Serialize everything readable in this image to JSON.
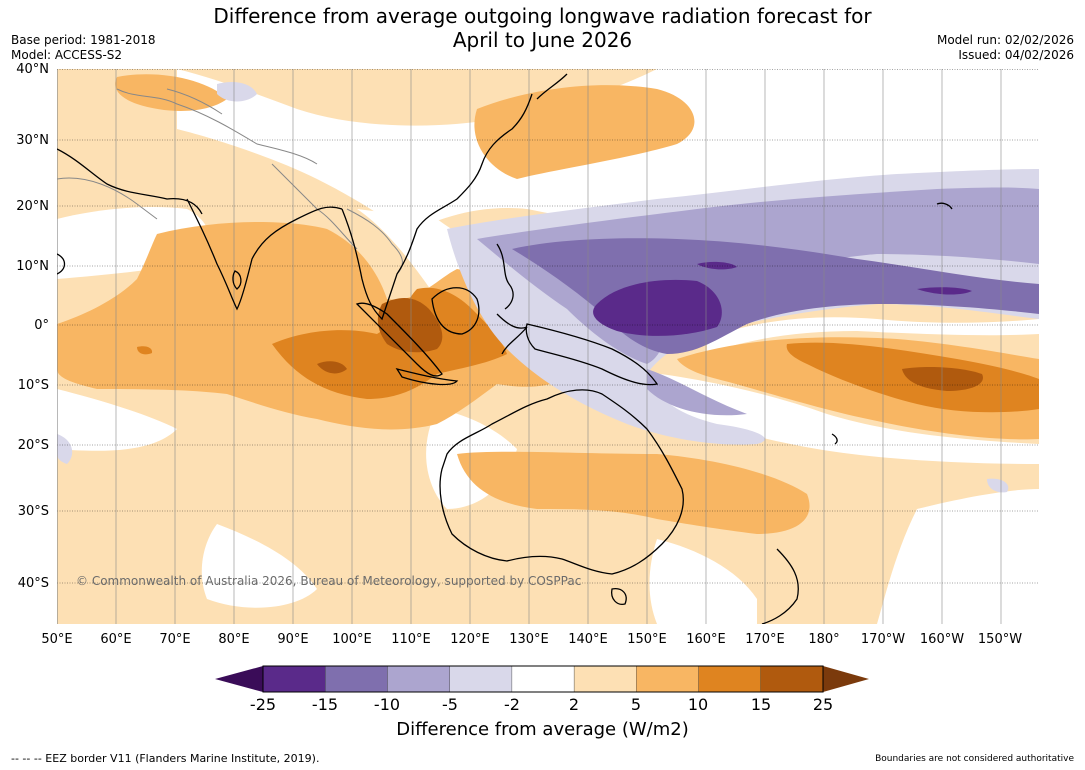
{
  "title_line1": "Difference from average outgoing longwave radiation forecast for",
  "title_line2": "April to June 2026",
  "base_period": "Base period: 1981-2018",
  "model": "Model: ACCESS-S2",
  "model_run": "Model run: 02/02/2026",
  "issued": "Issued: 04/02/2026",
  "lat_labels": [
    "40°N",
    "30°N",
    "20°N",
    "10°N",
    "0°",
    "10°S",
    "20°S",
    "30°S",
    "40°S"
  ],
  "lon_labels": [
    "50°E",
    "60°E",
    "70°E",
    "80°E",
    "90°E",
    "100°E",
    "110°E",
    "120°E",
    "130°E",
    "140°E",
    "150°E",
    "160°E",
    "170°E",
    "180°",
    "170°W",
    "160°W",
    "150°W"
  ],
  "copyright": "© Commonwealth of Australia 2026, Bureau of Meteorology, supported by COSPPac",
  "colorbar": {
    "ticks": [
      "-25",
      "-15",
      "-10",
      "-5",
      "-2",
      "2",
      "5",
      "10",
      "15",
      "25"
    ],
    "colors": [
      "#5a2a8a",
      "#7f6fae",
      "#aca5cf",
      "#d9d8ea",
      "#ffffff",
      "#fde0b4",
      "#f8b663",
      "#df8420",
      "#b05a0e"
    ],
    "under_color": "#3a0c58",
    "over_color": "#7b3a0c",
    "label": "Difference from average (W/m2)"
  },
  "footer_left": "--  --  -- EEZ border V11 (Flanders Marine Institute, 2019).",
  "footer_right": "Boundaries are not considered authoritative"
}
